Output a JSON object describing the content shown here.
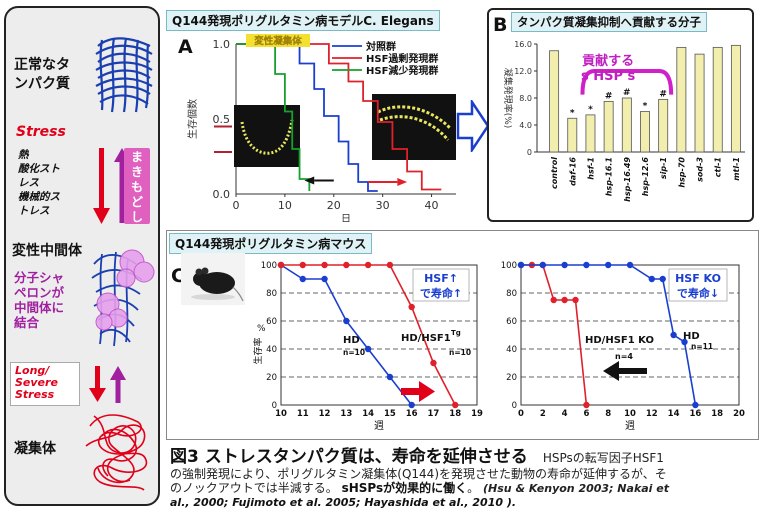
{
  "left_panel": {
    "normal_label": "正常なタンパク質",
    "normal_line1": "正常なタ",
    "normal_line2": "ンパク質",
    "stress_label": "Stress",
    "stress_causes": [
      "熱",
      "酸化スト",
      "レス",
      "機械的ス",
      "トレス"
    ],
    "rewind_label": "まきもどし",
    "rewind_chars": [
      "ま",
      "き",
      "も",
      "ど",
      "し"
    ],
    "intermediate_label": "変性中間体",
    "chaperone_lines": [
      "分子シャ",
      "ペロンが",
      "中間体に",
      "結合"
    ],
    "long_stress_lines": [
      "Long/",
      "Severe",
      "Stress"
    ],
    "aggregate_label": "凝集体",
    "colors": {
      "blue_protein": "#1a3fb0",
      "pink": "#d070d8",
      "red": "#e0001a",
      "purple": "#a020a0"
    }
  },
  "panel_a": {
    "title": "Q144発現ポリグルタミン病モデルC. Elegans",
    "letter": "A",
    "ylabel": "生存個数",
    "xlabel": "日",
    "badge": "変性凝集体",
    "legend": [
      {
        "name": "対照群",
        "color": "#1a3fd0"
      },
      {
        "name": "HSF過剰発現群",
        "color": "#e0202a"
      },
      {
        "name": "HSF減少発現群",
        "color": "#17a02c"
      }
    ]
  },
  "panel_b": {
    "title": "タンパク質凝集抑制へ貢献する分子",
    "letter": "B",
    "ylabel": "凝集発現率(%)",
    "annotation_line1": "貢献する",
    "annotation_line2": "s HSP s"
  },
  "panel_c": {
    "title": "Q144発現ポリグルタミン病マウス",
    "letter": "C",
    "left_plot": {
      "ylabel": "生存率",
      "percent_sign": "%",
      "xlabel": "週",
      "callout_line1": "HSF↑",
      "callout_line2": "で寿命↑",
      "hd_label": "HD",
      "hd_n": "n=10",
      "tg_label": "HD/HSF1",
      "tg_sup": "Tg",
      "tg_n": "n=10"
    },
    "right_plot": {
      "xlabel": "週",
      "callout_line1": "HSF KO",
      "callout_line2": "で寿命↓",
      "ko_label": "HD/HSF1 KO",
      "ko_n": "n=4",
      "hd_label": "HD",
      "hd_n": "n=11"
    }
  },
  "caption": {
    "title": "図3 ストレスタンパク質は、寿命を延伸させる",
    "lead": "HSPsの転写因子HSF1",
    "body_line2": "の強制発現により、ポリグルタミン凝集体(Q144)を発現させた動物の寿命が延伸するが、そ",
    "body_line3a": "のノックアウトでは半減する。",
    "body_line3b": "sHSPsが効果的に働く",
    "body_line3c": "。",
    "ref_line3": "(Hsu & Kenyon 2003; Nakai et",
    "ref_line4": "al., 2000; Fujimoto et al. 2005; Hayashida et al., 2010 )."
  },
  "chart_data": [
    {
      "type": "line",
      "panel": "A",
      "xlabel": "日",
      "ylabel": "生存個数",
      "xlim": [
        0,
        45
      ],
      "ylim": [
        0,
        1.0
      ],
      "x_ticks": [
        0,
        10,
        20,
        30,
        40
      ],
      "y_ticks": [
        0.0,
        0.5,
        1.0
      ],
      "series": [
        {
          "name": "対照群",
          "color": "#1a3fd0",
          "x": [
            0,
            13,
            13,
            16,
            16,
            18,
            18,
            21,
            21,
            23,
            23,
            25,
            25,
            27,
            27,
            29
          ],
          "y": [
            1.0,
            1.0,
            0.87,
            0.87,
            0.7,
            0.7,
            0.52,
            0.52,
            0.35,
            0.35,
            0.2,
            0.2,
            0.08,
            0.08,
            0.02,
            0.02
          ]
        },
        {
          "name": "HSF過剰発現群",
          "color": "#e0202a",
          "x": [
            0,
            19,
            19,
            23,
            23,
            26,
            26,
            29,
            29,
            32,
            32,
            35,
            35,
            38,
            38,
            42
          ],
          "y": [
            1.0,
            1.0,
            0.87,
            0.87,
            0.75,
            0.75,
            0.62,
            0.62,
            0.48,
            0.48,
            0.3,
            0.3,
            0.15,
            0.15,
            0.03,
            0.03
          ]
        },
        {
          "name": "HSF減少発現群",
          "color": "#17a02c",
          "x": [
            0,
            8,
            8,
            10,
            10,
            11.5,
            11.5,
            13,
            13,
            15,
            15
          ],
          "y": [
            1.0,
            1.0,
            0.8,
            0.8,
            0.55,
            0.55,
            0.3,
            0.3,
            0.1,
            0.1,
            0.02
          ]
        }
      ]
    },
    {
      "type": "bar",
      "panel": "B",
      "ylabel": "凝集発現率(%)",
      "ylim": [
        0,
        16
      ],
      "y_ticks": [
        0,
        4.0,
        8.0,
        12.0,
        16.0
      ],
      "categories": [
        "control",
        "daf-16",
        "hsf-1",
        "hsp-16.1",
        "hsp-16.49",
        "hsp-12.6",
        "sip-1",
        "hsp-70",
        "sod-3",
        "ctl-1",
        "mtl-1"
      ],
      "values": [
        15.0,
        5.0,
        5.5,
        7.5,
        8.0,
        6.0,
        7.8,
        15.5,
        14.5,
        15.5,
        15.8
      ],
      "markers": [
        "",
        "*",
        "*",
        "#",
        "#",
        "*",
        "#",
        "",
        "",
        "",
        ""
      ]
    },
    {
      "type": "line",
      "panel": "C-left",
      "xlabel": "週",
      "ylabel": "生存率",
      "xlim": [
        10,
        19
      ],
      "ylim": [
        0,
        100
      ],
      "x_ticks": [
        10,
        11,
        12,
        13,
        14,
        15,
        16,
        17,
        18,
        19
      ],
      "y_ticks": [
        0,
        20,
        40,
        60,
        80,
        100
      ],
      "series": [
        {
          "name": "HD",
          "color": "#1a3fd0",
          "x": [
            10,
            11,
            12,
            13,
            14,
            15,
            16
          ],
          "y": [
            100,
            90,
            90,
            60,
            40,
            20,
            0
          ]
        },
        {
          "name": "HD/HSF1 Tg",
          "color": "#e0202a",
          "x": [
            10,
            11,
            12,
            13,
            14,
            15,
            16,
            17,
            18
          ],
          "y": [
            100,
            100,
            100,
            100,
            100,
            100,
            70,
            30,
            0
          ]
        }
      ]
    },
    {
      "type": "line",
      "panel": "C-right",
      "xlabel": "週",
      "xlim": [
        0,
        20
      ],
      "ylim": [
        0,
        100
      ],
      "x_ticks": [
        0,
        2,
        4,
        6,
        8,
        10,
        12,
        14,
        16,
        18,
        20
      ],
      "y_ticks": [
        0,
        20,
        40,
        60,
        80,
        100
      ],
      "series": [
        {
          "name": "HD/HSF1 KO",
          "color": "#e0202a",
          "x": [
            0,
            1,
            2,
            3,
            4,
            5,
            6
          ],
          "y": [
            100,
            100,
            100,
            75,
            75,
            75,
            0
          ]
        },
        {
          "name": "HD",
          "color": "#1a3fd0",
          "x": [
            0,
            2,
            4,
            6,
            8,
            10,
            12,
            13,
            14,
            15,
            16
          ],
          "y": [
            100,
            100,
            100,
            100,
            100,
            100,
            90,
            90,
            50,
            45,
            0
          ]
        }
      ]
    }
  ]
}
